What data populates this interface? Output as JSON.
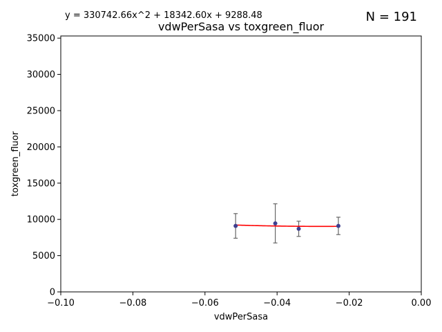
{
  "equation": "y = 330742.66x^2 + 18342.60x + 9288.48",
  "n_label": "N = 191",
  "colors": {
    "points": "#3f3f8f",
    "fit": "#ff0000",
    "errorbars": "#666666"
  },
  "chart_data": {
    "type": "scatter",
    "title": "vdwPerSasa vs toxgreen_fluor",
    "xlabel": "vdwPerSasa",
    "ylabel": "toxgreen_fluor",
    "xlim": [
      -0.1,
      0.0
    ],
    "ylim": [
      0,
      35300
    ],
    "xticks": [
      -0.1,
      -0.08,
      -0.06,
      -0.04,
      -0.02,
      0.0
    ],
    "xtick_labels": [
      "−0.10",
      "−0.08",
      "−0.06",
      "−0.04",
      "−0.02",
      "0.00"
    ],
    "yticks": [
      0,
      5000,
      10000,
      15000,
      20000,
      25000,
      30000,
      35000
    ],
    "ytick_labels": [
      "0",
      "5000",
      "10000",
      "15000",
      "20000",
      "25000",
      "30000",
      "35000"
    ],
    "grid": false,
    "points": [
      {
        "x": -0.0515,
        "y": 9100,
        "err": 1700
      },
      {
        "x": -0.0405,
        "y": 9450,
        "err": 2700
      },
      {
        "x": -0.034,
        "y": 8700,
        "err": 1050
      },
      {
        "x": -0.023,
        "y": 9100,
        "err": 1200
      }
    ],
    "fit": {
      "a": 330742.66,
      "b": 18342.6,
      "c": 9288.48,
      "x_range": [
        -0.0515,
        -0.023
      ]
    }
  }
}
